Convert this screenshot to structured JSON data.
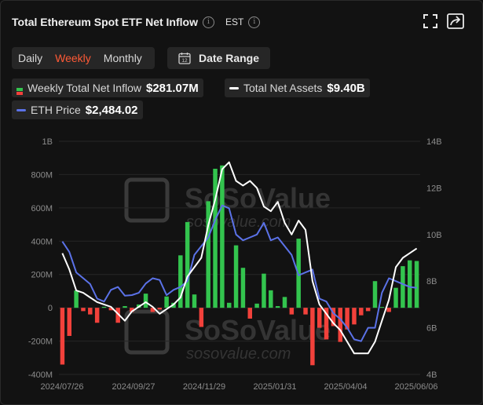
{
  "header": {
    "title": "Total Ethereum Spot ETF Net Inflow",
    "timezone": "EST"
  },
  "controls": {
    "periods": [
      "Daily",
      "Weekly",
      "Monthly"
    ],
    "active_period": "Weekly",
    "date_range_label": "Date Range"
  },
  "legend": {
    "inflow": {
      "label": "Weekly Total Net Inflow",
      "value": "$281.07M"
    },
    "assets": {
      "label": "Total Net Assets",
      "value": "$9.40B"
    },
    "price": {
      "label": "ETH Price",
      "value": "$2,484.02"
    }
  },
  "watermark": {
    "brand": "SoSoValue",
    "url": "sosovalue.com"
  },
  "colors": {
    "positive_bar": "#33c44e",
    "negative_bar": "#f2413b",
    "assets_line": "#ffffff",
    "price_line": "#5b72e8",
    "accent": "#ff5a36"
  },
  "chart_data": {
    "type": "bar",
    "left_axis_ticks": [
      "1B",
      "800M",
      "600M",
      "400M",
      "200M",
      "0",
      "-200M",
      "-400M"
    ],
    "right_axis_ticks": [
      "14B",
      "12B",
      "10B",
      "8B",
      "6B",
      "4B"
    ],
    "x_tick_labels": [
      "2024/07/26",
      "2024/09/27",
      "2024/11/29",
      "2025/01/31",
      "2025/04/04",
      "2025/06/06"
    ],
    "ylim_left": [
      -400,
      1000
    ],
    "ylim_right": [
      4,
      14
    ],
    "series": [
      {
        "name": "Weekly Total Net Inflow",
        "axis": "left",
        "unit": "M USD",
        "values": [
          -341,
          -169,
          104,
          -20,
          -40,
          -90,
          6,
          -15,
          -90,
          10,
          -25,
          20,
          85,
          -25,
          -10,
          68,
          30,
          315,
          515,
          80,
          -115,
          640,
          835,
          855,
          30,
          375,
          240,
          -65,
          25,
          205,
          105,
          10,
          65,
          -40,
          415,
          -40,
          -345,
          -120,
          -190,
          -110,
          -205,
          -130,
          -100,
          -45,
          -20,
          160,
          5,
          -25,
          120,
          250,
          285,
          281
        ]
      },
      {
        "name": "Total Net Assets",
        "axis": "right",
        "unit": "B USD",
        "values": [
          9.2,
          8.5,
          7.6,
          7.5,
          7.3,
          7.1,
          7.0,
          6.9,
          6.6,
          6.3,
          6.7,
          6.9,
          7.1,
          6.9,
          6.6,
          6.8,
          7.0,
          7.3,
          8.2,
          8.6,
          9.0,
          10.4,
          11.5,
          12.8,
          13.1,
          12.3,
          12.1,
          12.3,
          12.0,
          11.2,
          11.0,
          11.4,
          10.5,
          10.0,
          10.6,
          10.2,
          8.0,
          7.0,
          6.6,
          6.2,
          5.9,
          5.4,
          4.9,
          4.9,
          4.9,
          5.4,
          6.3,
          7.2,
          8.6,
          9.0,
          9.2,
          9.4
        ]
      },
      {
        "name": "ETH Price",
        "axis": "price",
        "unit": "USD",
        "values": [
          3280,
          3100,
          2750,
          2650,
          2550,
          2300,
          2250,
          2450,
          2500,
          2350,
          2360,
          2400,
          2560,
          2650,
          2620,
          2360,
          2450,
          2500,
          2600,
          3050,
          3200,
          3350,
          3650,
          3900,
          3850,
          3400,
          3300,
          3350,
          3400,
          3600,
          3300,
          3350,
          3200,
          3050,
          2700,
          2750,
          2800,
          2300,
          2250,
          2050,
          1950,
          1800,
          1600,
          1570,
          1800,
          1800,
          2400,
          2650,
          2600,
          2550,
          2500,
          2484
        ]
      }
    ]
  }
}
